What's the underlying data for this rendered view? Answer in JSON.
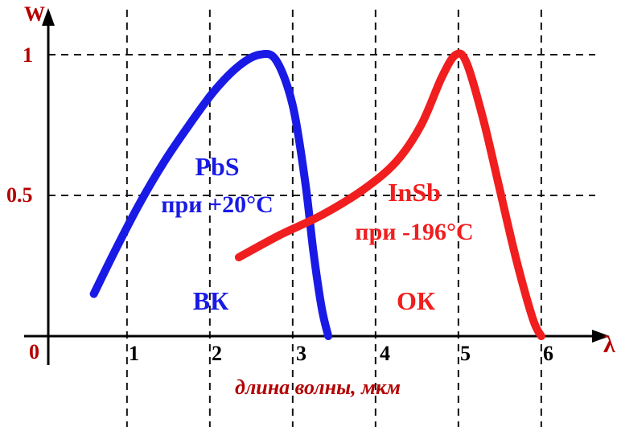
{
  "chart_data": {
    "type": "line",
    "xlabel": "длина волны, мкм",
    "ylabel": "W",
    "xaxis_symbol": "λ",
    "origin_label": "0",
    "xlim": [
      0,
      6.7
    ],
    "ylim": [
      0,
      1.1
    ],
    "x_ticks": [
      "1",
      "2",
      "3",
      "4",
      "5",
      "6"
    ],
    "y_ticks": [
      "0.5",
      "1"
    ],
    "grid": true,
    "series": [
      {
        "name": "PbS",
        "label_lines": [
          "PbS",
          "при +20°C"
        ],
        "color": "#1a1ae6",
        "x": [
          0.55,
          0.8,
          1.1,
          1.4,
          1.7,
          2.0,
          2.3,
          2.55,
          2.75,
          2.95,
          3.1,
          3.2,
          3.3,
          3.38
        ],
        "y": [
          0.15,
          0.3,
          0.47,
          0.62,
          0.75,
          0.87,
          0.96,
          1.0,
          0.98,
          0.82,
          0.55,
          0.3,
          0.1,
          0.0
        ]
      },
      {
        "name": "InSb",
        "label_lines": [
          "InSb",
          "при -196°C"
        ],
        "color": "#f01e1e",
        "x": [
          2.3,
          2.8,
          3.3,
          3.8,
          4.2,
          4.5,
          4.75,
          4.92,
          5.05,
          5.25,
          5.45,
          5.65,
          5.85,
          5.95
        ],
        "y": [
          0.28,
          0.36,
          0.43,
          0.52,
          0.62,
          0.75,
          0.92,
          1.0,
          0.97,
          0.77,
          0.52,
          0.27,
          0.06,
          0.0
        ]
      }
    ],
    "annotations": [
      {
        "text": "ВК",
        "color": "#1a1ae6"
      },
      {
        "text": "ОК",
        "color": "#f01e1e"
      }
    ]
  }
}
